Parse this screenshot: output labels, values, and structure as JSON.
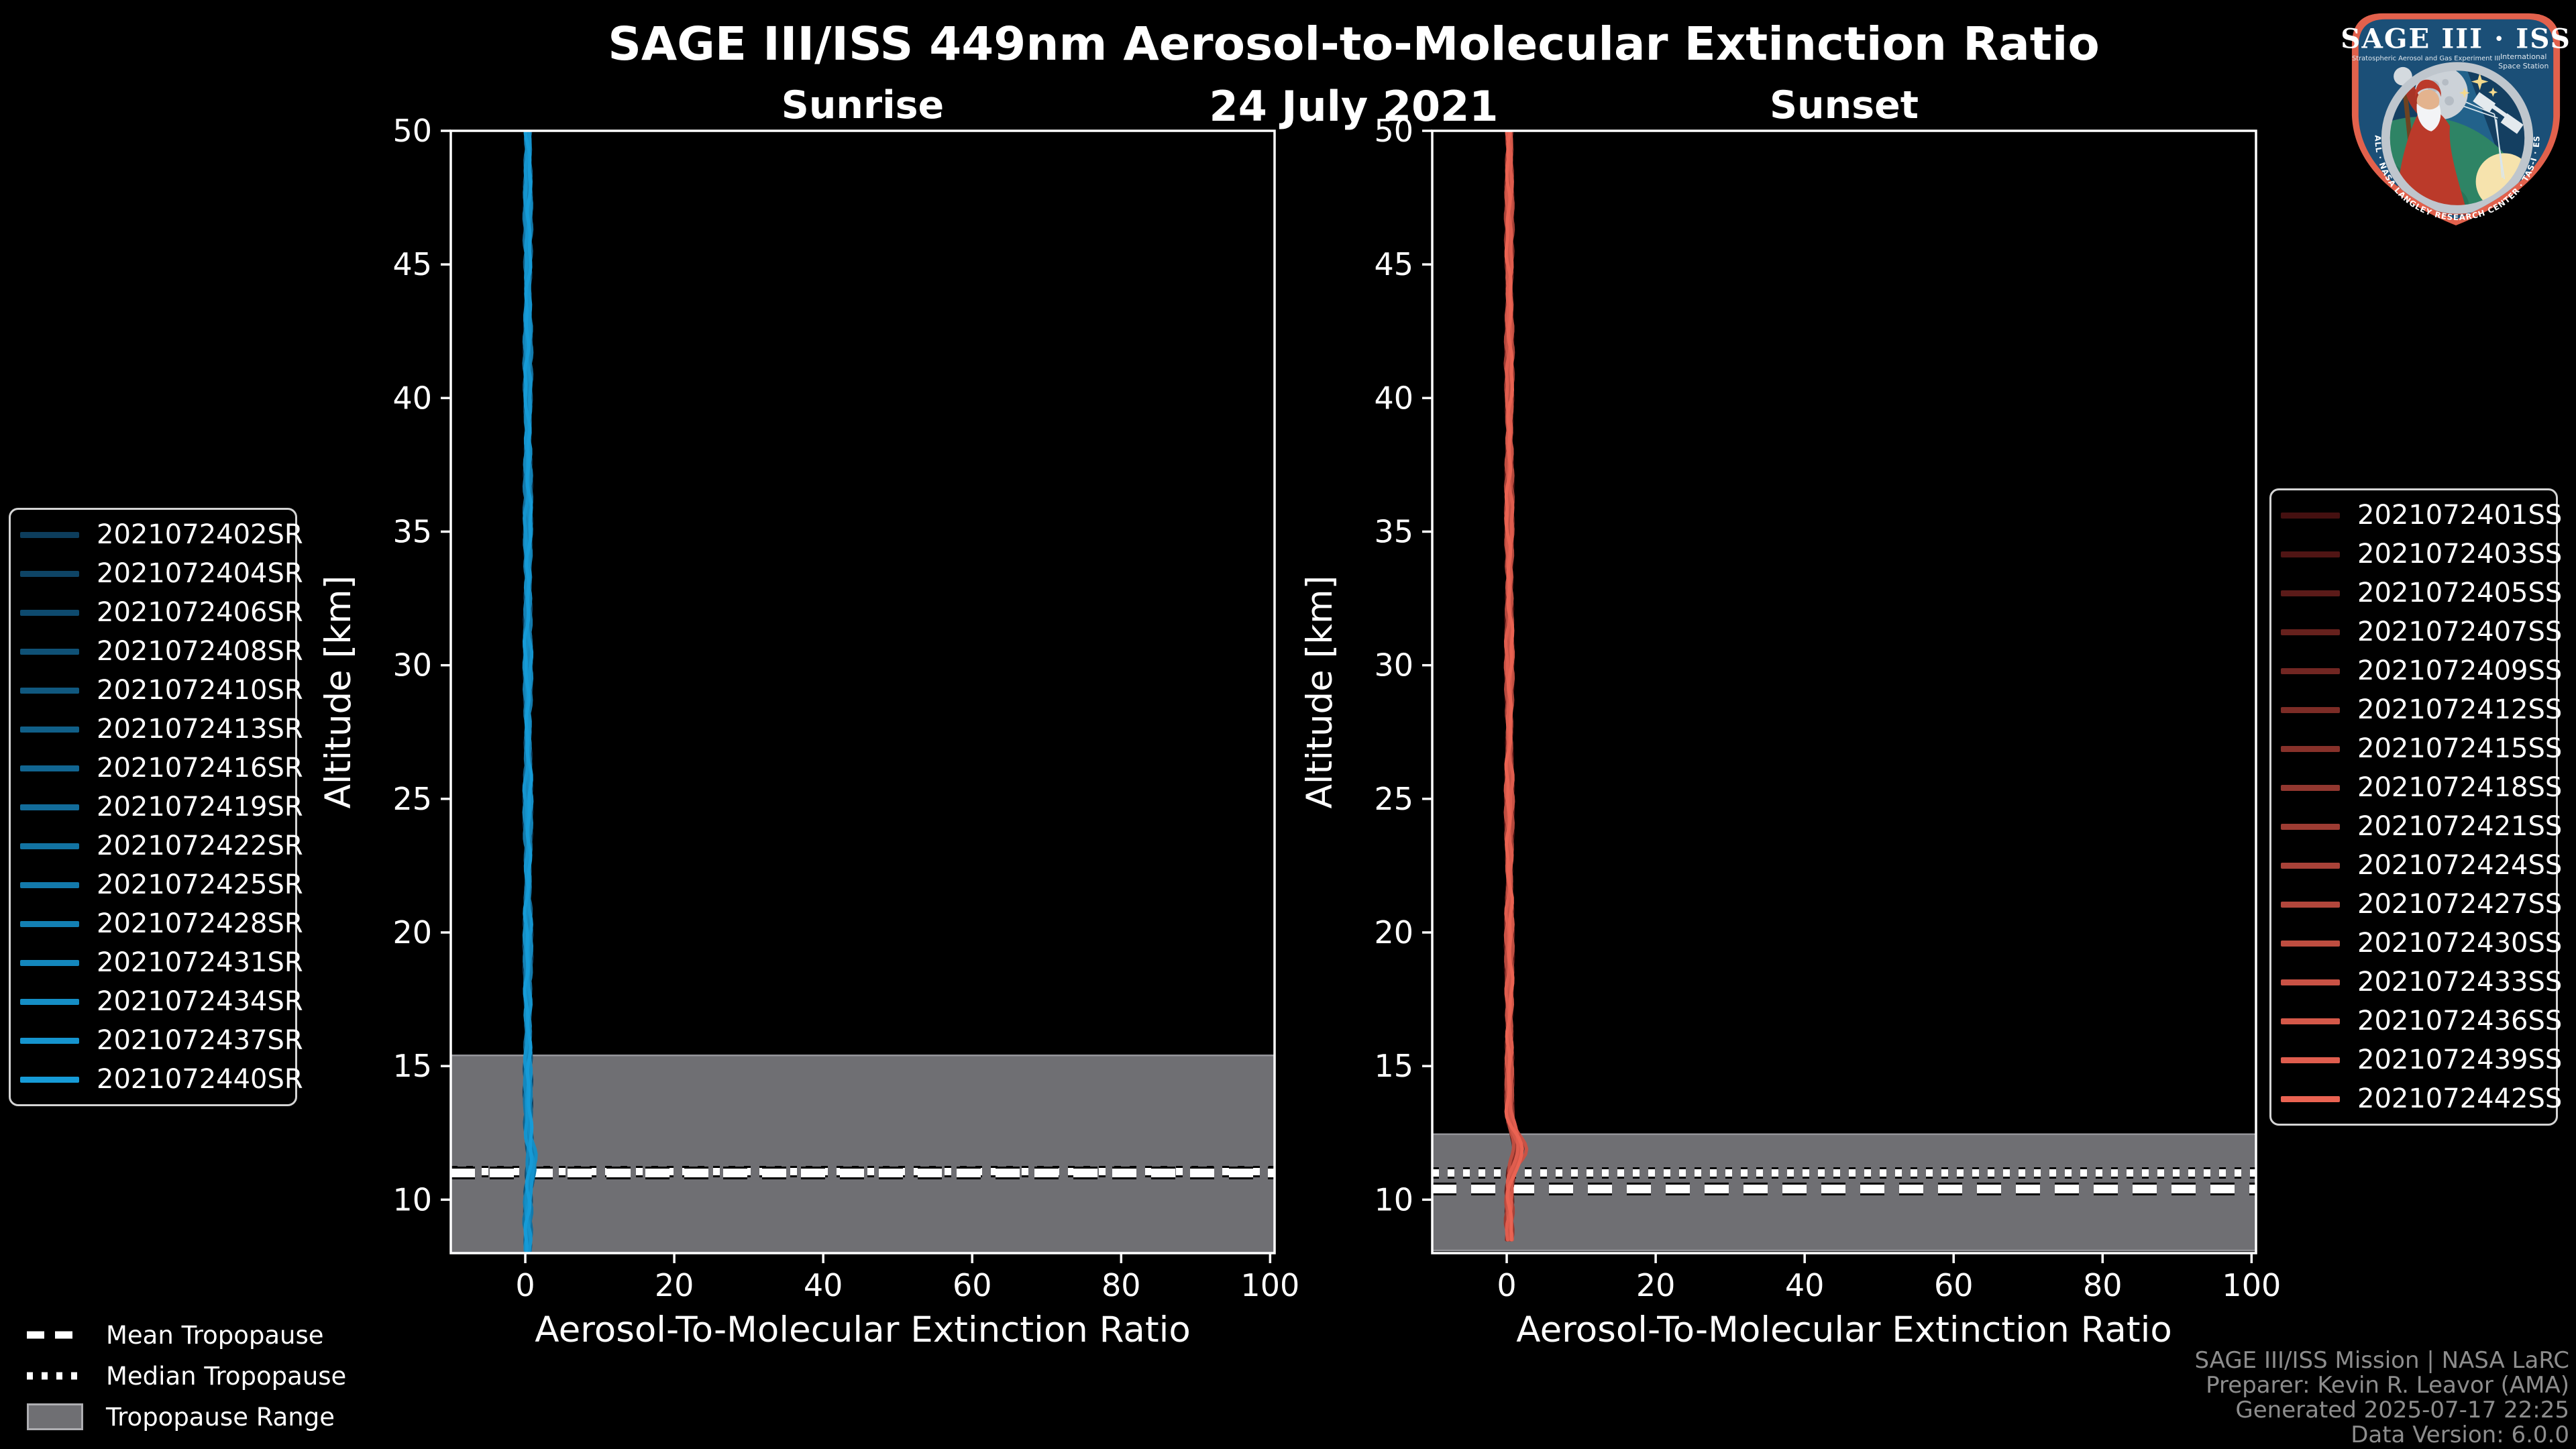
{
  "figure": {
    "title": "SAGE III/ISS 449nm Aerosol-to-Molecular Extinction Ratio",
    "date": "24 July 2021"
  },
  "logo": {
    "title": "SAGE III · ISS",
    "subtitle_left": "Stratospheric Aerosol and Gas Experiment III",
    "subtitle_right_line1": "International",
    "subtitle_right_line2": "Space Station",
    "ring_text": "BALL · NASA LANGLEY RESEARCH CENTER · TAS-I · ESA"
  },
  "tropopause_legend": {
    "items": [
      {
        "label": "Mean Tropopause",
        "style": "dashed"
      },
      {
        "label": "Median Tropopause",
        "style": "dotted"
      },
      {
        "label": "Tropopause Range",
        "style": "patch",
        "color": "#6f6f73"
      }
    ]
  },
  "attribution": {
    "lines": [
      "SAGE III/ISS Mission | NASA LaRC",
      "Preparer: Kevin R. Leavor (AMA)",
      "Generated 2025-07-17 22:25",
      "Data Version: 6.0.0"
    ]
  },
  "colors": {
    "background": "#000000",
    "text": "#ffffff",
    "band": "#6f6f73",
    "band_edge": "#95959a",
    "attribution_text": "#8d8d8d",
    "legend_border": "#d4d4d4",
    "sunrise_line_bright": "#169bd7",
    "sunset_line_bright": "#ea6352"
  },
  "chart_data": [
    {
      "type": "line",
      "title": "Sunrise",
      "xlabel": "Aerosol-To-Molecular Extinction Ratio",
      "ylabel": "Altitude [km]",
      "xlim": [
        -10,
        100.6
      ],
      "ylim": [
        8,
        50
      ],
      "xticks": [
        0,
        20,
        40,
        60,
        80,
        100
      ],
      "yticks": [
        10,
        15,
        20,
        25,
        30,
        35,
        40,
        45,
        50
      ],
      "grid": false,
      "band_color": "#6f6f73",
      "tropopause": {
        "mean_km": 11.0,
        "median_km": 11.05,
        "range_km": [
          8.0,
          15.4
        ]
      },
      "profile_bottom_km": 8.0,
      "bump_alt_km": 11.4,
      "bump_amp": 0.8,
      "ratio_profile": {
        "altitude_km": [
          50,
          48,
          46,
          44,
          42,
          40,
          38,
          36,
          34,
          32,
          30,
          28,
          26,
          24,
          22,
          20,
          18,
          16,
          14,
          12,
          10,
          8
        ],
        "ratio_typical": [
          0.6,
          0.4,
          0.7,
          0.5,
          0.3,
          0.6,
          0.5,
          0.4,
          0.6,
          0.5,
          0.4,
          0.5,
          0.6,
          0.4,
          0.5,
          0.6,
          0.4,
          0.5,
          0.6,
          0.8,
          0.5,
          0.4
        ]
      },
      "series": [
        {
          "name": "2021072402SR",
          "color": "#0d3d5c"
        },
        {
          "name": "2021072404SR",
          "color": "#0e4465"
        },
        {
          "name": "2021072406SR",
          "color": "#0e4a6e"
        },
        {
          "name": "2021072408SR",
          "color": "#0f5176"
        },
        {
          "name": "2021072410SR",
          "color": "#10587f"
        },
        {
          "name": "2021072413SR",
          "color": "#105f88"
        },
        {
          "name": "2021072416SR",
          "color": "#116591"
        },
        {
          "name": "2021072419SR",
          "color": "#126c9a"
        },
        {
          "name": "2021072422SR",
          "color": "#1273a2"
        },
        {
          "name": "2021072425SR",
          "color": "#1379ab"
        },
        {
          "name": "2021072428SR",
          "color": "#1380b4"
        },
        {
          "name": "2021072431SR",
          "color": "#1487bd"
        },
        {
          "name": "2021072434SR",
          "color": "#158ec5"
        },
        {
          "name": "2021072437SR",
          "color": "#1594ce"
        },
        {
          "name": "2021072440SR",
          "color": "#169bd7"
        }
      ]
    },
    {
      "type": "line",
      "title": "Sunset",
      "xlabel": "Aerosol-To-Molecular Extinction Ratio",
      "ylabel": "Altitude [km]",
      "xlim": [
        -10,
        100.6
      ],
      "ylim": [
        8,
        50
      ],
      "xticks": [
        0,
        20,
        40,
        60,
        80,
        100
      ],
      "yticks": [
        10,
        15,
        20,
        25,
        30,
        35,
        40,
        45,
        50
      ],
      "grid": false,
      "band_color": "#6f6f73",
      "tropopause": {
        "mean_km": 10.4,
        "median_km": 11.0,
        "range_km": [
          8.1,
          12.45
        ]
      },
      "profile_bottom_km": 8.4,
      "bump_alt_km": 11.9,
      "bump_amp": 1.9,
      "ratio_profile": {
        "altitude_km": [
          50,
          48,
          46,
          44,
          42,
          40,
          38,
          36,
          34,
          32,
          30,
          28,
          26,
          24,
          22,
          20,
          18,
          16,
          14,
          12,
          10,
          8
        ],
        "ratio_typical": [
          0.5,
          0.6,
          0.4,
          0.5,
          0.7,
          0.4,
          0.5,
          0.6,
          0.4,
          0.5,
          0.6,
          0.5,
          0.4,
          0.6,
          0.5,
          0.4,
          0.6,
          0.5,
          0.4,
          1.3,
          0.6,
          0.5
        ]
      },
      "series": [
        {
          "name": "2021072401SS",
          "color": "#451010"
        },
        {
          "name": "2021072403SS",
          "color": "#501514"
        },
        {
          "name": "2021072405SS",
          "color": "#5b1b19"
        },
        {
          "name": "2021072407SS",
          "color": "#66211d"
        },
        {
          "name": "2021072409SS",
          "color": "#712622"
        },
        {
          "name": "2021072412SS",
          "color": "#7c2c26"
        },
        {
          "name": "2021072415SS",
          "color": "#87312a"
        },
        {
          "name": "2021072418SS",
          "color": "#92372f"
        },
        {
          "name": "2021072421SS",
          "color": "#9d3c33"
        },
        {
          "name": "2021072424SS",
          "color": "#a84238"
        },
        {
          "name": "2021072427SS",
          "color": "#b3473c"
        },
        {
          "name": "2021072430SS",
          "color": "#be4d40"
        },
        {
          "name": "2021072433SS",
          "color": "#c95245"
        },
        {
          "name": "2021072436SS",
          "color": "#d45849"
        },
        {
          "name": "2021072439SS",
          "color": "#df5d4e"
        },
        {
          "name": "2021072442SS",
          "color": "#ea6352"
        }
      ]
    }
  ]
}
